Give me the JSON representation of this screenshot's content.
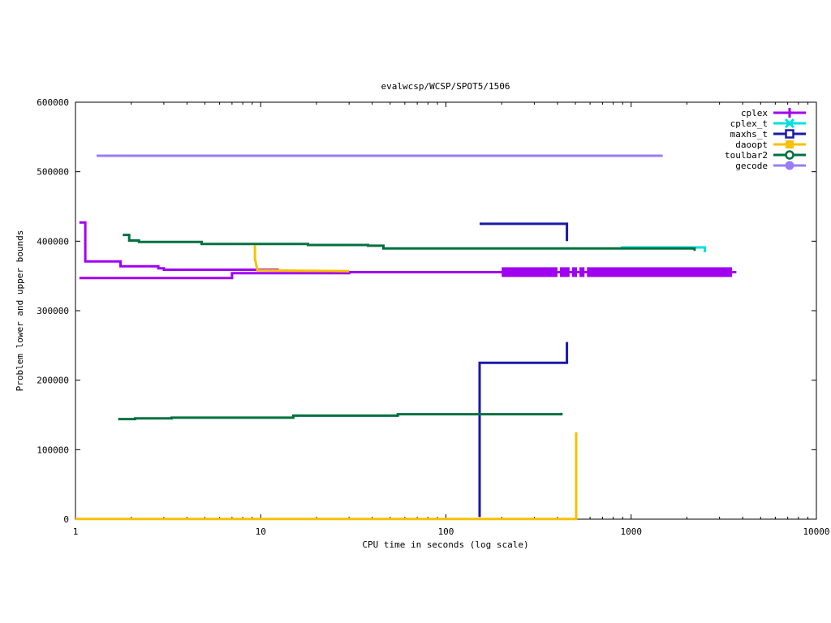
{
  "chart_data": {
    "type": "line",
    "title": "evalwcsp/WCSP/SPOT5/1506",
    "xlabel": "CPU time in seconds (log scale)",
    "ylabel": "Problem lower and upper bounds",
    "x_scale": "log",
    "xlim": [
      1,
      10000
    ],
    "ylim": [
      0,
      600000
    ],
    "x_ticks": [
      1,
      10,
      100,
      1000,
      10000
    ],
    "x_tick_labels": [
      "1",
      "10",
      "100",
      "1000",
      "10000"
    ],
    "y_ticks": [
      0,
      100000,
      200000,
      300000,
      400000,
      500000,
      600000
    ],
    "y_tick_labels": [
      "0",
      "100000",
      "200000",
      "300000",
      "400000",
      "500000",
      "600000"
    ],
    "grid": false,
    "legend_position": "top-right",
    "series": [
      {
        "name": "cplex",
        "color": "#a000f0",
        "marker": "plus",
        "segments": [
          [
            [
              1.05,
              427000
            ],
            [
              1.13,
              427000
            ],
            [
              1.13,
              371000
            ],
            [
              1.75,
              371000
            ],
            [
              1.75,
              364000
            ],
            [
              2.8,
              364000
            ],
            [
              2.8,
              361000
            ],
            [
              3.0,
              361000
            ],
            [
              3.0,
              359000
            ],
            [
              12.5,
              359000
            ]
          ],
          [
            [
              1.05,
              347000
            ],
            [
              7.0,
              347000
            ],
            [
              7.0,
              354000
            ],
            [
              30,
              354000
            ],
            [
              30,
              355500
            ],
            [
              3700,
              355500
            ]
          ]
        ],
        "dense_markers_x": [
          200,
          3500
        ]
      },
      {
        "name": "cplex_t",
        "color": "#00e0e0",
        "marker": "x",
        "segments": [
          [
            [
              880,
              391000
            ],
            [
              2500,
              391000
            ],
            [
              2500,
              384000
            ]
          ]
        ]
      },
      {
        "name": "maxhs_t",
        "color": "#1a1aa8",
        "marker": "square",
        "segments": [
          [
            [
              152,
              425000
            ],
            [
              450,
              425000
            ],
            [
              450,
              400000
            ]
          ],
          [
            [
              152,
              3000
            ],
            [
              152,
              225000
            ],
            [
              450,
              225000
            ],
            [
              450,
              255000
            ]
          ]
        ]
      },
      {
        "name": "daoopt",
        "color": "#f8c000",
        "marker": "square-filled",
        "segments": [
          [
            [
              9.3,
              394000
            ],
            [
              9.3,
              375000
            ],
            [
              9.6,
              358000
            ],
            [
              30,
              357000
            ]
          ],
          [
            [
              1,
              200
            ],
            [
              505,
              200
            ],
            [
              505,
              125000
            ]
          ]
        ]
      },
      {
        "name": "toulbar2",
        "color": "#007040",
        "marker": "circle",
        "segments": [
          [
            [
              1.8,
              409000
            ],
            [
              1.95,
              409000
            ],
            [
              1.95,
              401000
            ],
            [
              2.2,
              401000
            ],
            [
              2.2,
              399000
            ],
            [
              4.8,
              399000
            ],
            [
              4.8,
              396000
            ],
            [
              18,
              396000
            ],
            [
              18,
              394500
            ],
            [
              38,
              394500
            ],
            [
              38,
              393500
            ],
            [
              46,
              393500
            ],
            [
              46,
              389500
            ],
            [
              2200,
              389500
            ],
            [
              2200,
              386000
            ]
          ],
          [
            [
              1.7,
              144000
            ],
            [
              2.1,
              144000
            ],
            [
              2.1,
              145000
            ],
            [
              3.3,
              145000
            ],
            [
              3.3,
              146000
            ],
            [
              15,
              146000
            ],
            [
              15,
              149000
            ],
            [
              55,
              149000
            ],
            [
              55,
              151000
            ],
            [
              420,
              151000
            ],
            [
              420,
              153000
            ]
          ]
        ]
      },
      {
        "name": "gecode",
        "color": "#9b7cf5",
        "marker": "circle-filled",
        "segments": [
          [
            [
              1.3,
              523000
            ],
            [
              1480,
              523000
            ]
          ]
        ]
      }
    ]
  }
}
